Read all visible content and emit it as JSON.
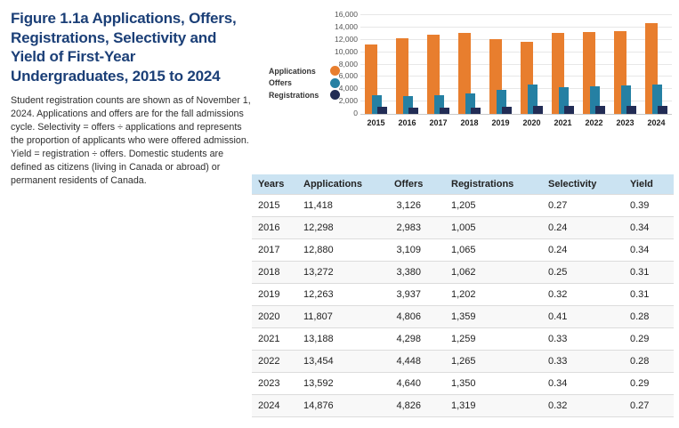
{
  "figure": {
    "title": "Figure 1.1a Applications, Offers, Registrations, Selectivity and Yield of First-Year Undergraduates, 2015 to 2024",
    "description": "Student registration counts are shown as of November 1, 2024. Applications and offers are for the fall admissions cycle. Selectivity = offers ÷ applications and represents the proportion of applicants who were offered admission. Yield = registration ÷ offers. Domestic students are defined as citizens (living in Canada or abroad) or permanent residents of Canada."
  },
  "chart_data": {
    "type": "bar",
    "bar_style": "overlapping",
    "categories": [
      "2015",
      "2016",
      "2017",
      "2018",
      "2019",
      "2020",
      "2021",
      "2022",
      "2023",
      "2024"
    ],
    "series": [
      {
        "name": "Applications",
        "color": "#e87e2e",
        "values": [
          11418,
          12298,
          12880,
          13272,
          12263,
          11807,
          13188,
          13454,
          13592,
          14876
        ]
      },
      {
        "name": "Offers",
        "color": "#2580a3",
        "values": [
          3126,
          2983,
          3109,
          3380,
          3937,
          4806,
          4298,
          4448,
          4640,
          4826
        ]
      },
      {
        "name": "Registrations",
        "color": "#222c55",
        "values": [
          1205,
          1005,
          1065,
          1062,
          1202,
          1359,
          1259,
          1265,
          1350,
          1319
        ]
      }
    ],
    "title": "",
    "xlabel": "",
    "ylabel": "",
    "ylim": [
      0,
      16000
    ],
    "ytick_step": 2000,
    "ytick_labels": [
      "0",
      "2,000",
      "4,000",
      "6,000",
      "8,000",
      "10,000",
      "12,000",
      "14,000",
      "16,000"
    ],
    "grid": true,
    "legend_position": "left"
  },
  "table": {
    "headers": [
      "Years",
      "Applications",
      "Offers",
      "Registrations",
      "Selectivity",
      "Yield"
    ],
    "rows": [
      [
        "2015",
        "11,418",
        "3,126",
        "1,205",
        "0.27",
        "0.39"
      ],
      [
        "2016",
        "12,298",
        "2,983",
        "1,005",
        "0.24",
        "0.34"
      ],
      [
        "2017",
        "12,880",
        "3,109",
        "1,065",
        "0.24",
        "0.34"
      ],
      [
        "2018",
        "13,272",
        "3,380",
        "1,062",
        "0.25",
        "0.31"
      ],
      [
        "2019",
        "12,263",
        "3,937",
        "1,202",
        "0.32",
        "0.31"
      ],
      [
        "2020",
        "11,807",
        "4,806",
        "1,359",
        "0.41",
        "0.28"
      ],
      [
        "2021",
        "13,188",
        "4,298",
        "1,259",
        "0.33",
        "0.29"
      ],
      [
        "2022",
        "13,454",
        "4,448",
        "1,265",
        "0.33",
        "0.28"
      ],
      [
        "2023",
        "13,592",
        "4,640",
        "1,350",
        "0.34",
        "0.29"
      ],
      [
        "2024",
        "14,876",
        "4,826",
        "1,319",
        "0.32",
        "0.27"
      ]
    ]
  },
  "colors": {
    "title_text": "#1b3f77",
    "body_text": "#2e2e2e",
    "applications": "#e87e2e",
    "offers": "#2580a3",
    "registrations": "#222c55",
    "table_header_bg": "#cbe3f2",
    "row_border": "#dcdcdc",
    "zebra_row_bg": "#f8f8f8",
    "gridline": "#e7e7e7"
  }
}
